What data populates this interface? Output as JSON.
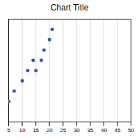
{
  "chart_data": {
    "type": "scatter",
    "title": "Chart Title",
    "x": [
      5,
      7,
      10,
      12,
      14,
      15,
      17,
      18,
      20,
      21
    ],
    "values": [
      2,
      3,
      4,
      5,
      6,
      5,
      6,
      7,
      8,
      9
    ],
    "color": "#2E5FA3",
    "xlim": [
      5,
      50
    ],
    "xticks": [
      5,
      10,
      15,
      20,
      25,
      30,
      35,
      40,
      45,
      50
    ],
    "ylim": [
      0,
      10
    ],
    "grid": true,
    "tick_labels": "x"
  }
}
